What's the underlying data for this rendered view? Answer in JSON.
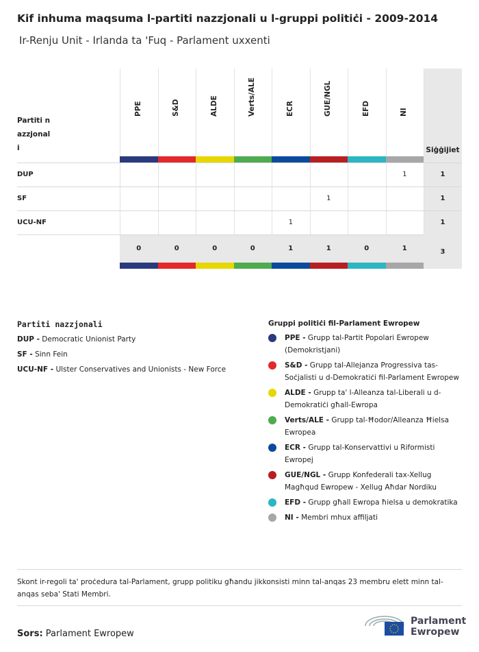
{
  "header": {
    "title": "Kif inhuma maqsuma l-partiti nazzjonali u l-gruppi politiċi - 2009-2014",
    "subtitle": "Ir-Renju Unit - Irlanda ta 'Fuq - Parlament uxxenti"
  },
  "table": {
    "corner": "Partiti nazzjonali",
    "total_header": "Siġġijiet",
    "groups": [
      {
        "name": "PPE",
        "color": "#2b3a7d"
      },
      {
        "name": "S&D",
        "color": "#e2292b"
      },
      {
        "name": "ALDE",
        "color": "#e6d700"
      },
      {
        "name": "Verts/ALE",
        "color": "#4fab4f"
      },
      {
        "name": "ECR",
        "color": "#0c4b9b"
      },
      {
        "name": "GUE/NGL",
        "color": "#b71f22"
      },
      {
        "name": "EFD",
        "color": "#2cb6c1"
      },
      {
        "name": "NI",
        "color": "#a7a7a7"
      }
    ],
    "rows": [
      {
        "party": "DUP",
        "cells": [
          null,
          null,
          null,
          null,
          null,
          null,
          null,
          1
        ],
        "total": 1
      },
      {
        "party": "SF",
        "cells": [
          null,
          null,
          null,
          null,
          null,
          1,
          null,
          null
        ],
        "total": 1
      },
      {
        "party": "UCU-NF",
        "cells": [
          null,
          null,
          null,
          null,
          1,
          null,
          null,
          null
        ],
        "total": 1
      }
    ],
    "totals": [
      0,
      0,
      0,
      0,
      1,
      1,
      0,
      1
    ],
    "grand_total": 3
  },
  "parties_legend": {
    "title": "Partiti nazzjonali",
    "items": [
      {
        "abbr": "DUP -",
        "name": "Democratic Unionist Party"
      },
      {
        "abbr": "SF -",
        "name": "Sinn Fein"
      },
      {
        "abbr": "UCU-NF -",
        "name": "Ulster Conservatives and Unionists - New Force"
      }
    ]
  },
  "groups_legend": {
    "title": "Gruppi politiċi fil-Parlament Ewropew",
    "items": [
      {
        "abbr": "PPE -",
        "name": "Grupp tal-Partit Popolari Ewropew (Demokristjani)"
      },
      {
        "abbr": "S&D -",
        "name": "Grupp tal-Allejanza Progressiva tas-Soċjalisti u d-Demokratiċi fil-Parlament Ewropew"
      },
      {
        "abbr": "ALDE -",
        "name": "Grupp ta' l-Alleanza tal-Liberali u d-Demokratiċi għall-Ewropa"
      },
      {
        "abbr": "Verts/ALE -",
        "name": "Grupp tal-Ħodor/Alleanza Ħielsa Ewropea"
      },
      {
        "abbr": "ECR -",
        "name": "Grupp tal-Konservattivi u Riformisti Ewropej"
      },
      {
        "abbr": "GUE/NGL -",
        "name": "Grupp Konfederali tax-Xellug Magħqud Ewropew - Xellug Aħdar Nordiku"
      },
      {
        "abbr": "EFD -",
        "name": "Grupp għall Ewropa ħielsa u demokratika"
      },
      {
        "abbr": "NI -",
        "name": "Membri mhux affiljati"
      }
    ]
  },
  "note": "Skont ir-regoli ta' proċedura tal-Parlament, grupp politiku għandu jikkonsisti minn tal-anqas 23 membru elett minn tal-anqas seba' Stati Membri.",
  "source": {
    "label": "Sors:",
    "text": "Parlament Ewropew"
  },
  "logo": {
    "line1": "Parlament",
    "line2": "Ewropew"
  }
}
